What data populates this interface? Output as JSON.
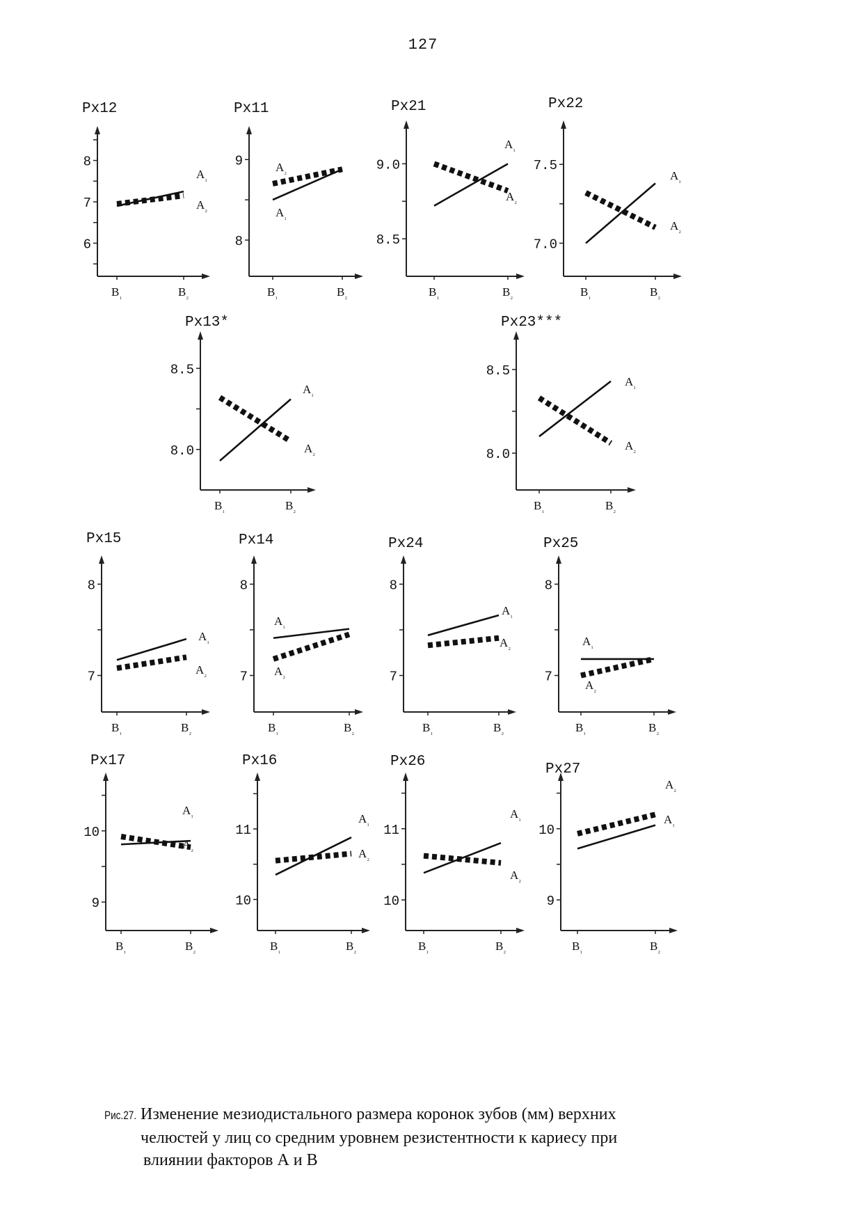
{
  "page_number": "127",
  "caption": {
    "label": "Рис.27.",
    "line1": "Изменение мезиодистального размера коронок зубов (мм) верхних",
    "line2": "челюстей у лиц со средним уровнем резистентности к кариесу при",
    "line3": "влиянии факторов А и В"
  },
  "chart_data": [
    {
      "type": "line",
      "title": "Рх12",
      "categories": [
        "B₁",
        "B₂"
      ],
      "ylim": [
        5.2,
        8.8
      ],
      "yticks": [
        {
          "value": 6,
          "label": "6"
        },
        {
          "value": 7,
          "label": "7"
        },
        {
          "value": 8,
          "label": "8"
        }
      ],
      "series": [
        {
          "name": "A₁",
          "values": [
            6.9,
            7.25
          ]
        },
        {
          "name": "A₂",
          "values": [
            6.95,
            7.15
          ]
        }
      ]
    },
    {
      "type": "line",
      "title": "Рх11",
      "categories": [
        "B₁",
        "B₂"
      ],
      "ylim": [
        7.55,
        9.4
      ],
      "yticks": [
        {
          "value": 8,
          "label": "8"
        },
        {
          "value": 9,
          "label": "9"
        }
      ],
      "series": [
        {
          "name": "A₁",
          "values": [
            8.5,
            8.88
          ]
        },
        {
          "name": "A₂",
          "values": [
            8.7,
            8.88
          ]
        }
      ]
    },
    {
      "type": "line",
      "title": "Рх21",
      "categories": [
        "B₁",
        "B₂"
      ],
      "ylim": [
        8.25,
        9.28
      ],
      "yticks": [
        {
          "value": 8.5,
          "label": "8.5"
        },
        {
          "value": 9.0,
          "label": "9.0"
        }
      ],
      "series": [
        {
          "name": "A₁",
          "values": [
            8.72,
            9.0
          ]
        },
        {
          "name": "A₂",
          "values": [
            9.0,
            8.82
          ]
        }
      ]
    },
    {
      "type": "line",
      "title": "Рх22",
      "categories": [
        "B₁",
        "B₂"
      ],
      "ylim": [
        6.79,
        7.77
      ],
      "yticks": [
        {
          "value": 7.0,
          "label": "7.0"
        },
        {
          "value": 7.5,
          "label": "7.5"
        }
      ],
      "series": [
        {
          "name": "A₁",
          "values": [
            7.0,
            7.38
          ]
        },
        {
          "name": "A₂",
          "values": [
            7.32,
            7.1
          ]
        }
      ]
    },
    {
      "type": "line",
      "title": "Рх13*",
      "categories": [
        "B₁",
        "B₂"
      ],
      "ylim": [
        7.75,
        8.72
      ],
      "yticks": [
        {
          "value": 8.0,
          "label": "8.0"
        },
        {
          "value": 8.5,
          "label": "8.5"
        }
      ],
      "series": [
        {
          "name": "A₁",
          "values": [
            7.93,
            8.31
          ]
        },
        {
          "name": "A₂",
          "values": [
            8.32,
            8.05
          ]
        }
      ]
    },
    {
      "type": "line",
      "title": "Рх23***",
      "categories": [
        "B₁",
        "B₂"
      ],
      "ylim": [
        7.78,
        8.72
      ],
      "yticks": [
        {
          "value": 8.0,
          "label": "8.0"
        },
        {
          "value": 8.5,
          "label": "8.5"
        }
      ],
      "series": [
        {
          "name": "A₁",
          "values": [
            8.1,
            8.43
          ]
        },
        {
          "name": "A₂",
          "values": [
            8.33,
            8.06
          ]
        }
      ]
    },
    {
      "type": "line",
      "title": "Рх15",
      "categories": [
        "B₁",
        "B₂"
      ],
      "ylim": [
        6.6,
        8.3
      ],
      "yticks": [
        {
          "value": 7,
          "label": "7"
        },
        {
          "value": 8,
          "label": "8"
        }
      ],
      "series": [
        {
          "name": "A₁",
          "values": [
            7.17,
            7.4
          ]
        },
        {
          "name": "A₂",
          "values": [
            7.08,
            7.2
          ]
        }
      ]
    },
    {
      "type": "line",
      "title": "Рх14",
      "categories": [
        "B₁",
        "B₂"
      ],
      "ylim": [
        6.6,
        8.3
      ],
      "yticks": [
        {
          "value": 7,
          "label": "7"
        },
        {
          "value": 8,
          "label": "8"
        }
      ],
      "series": [
        {
          "name": "A₁",
          "values": [
            7.41,
            7.51
          ]
        },
        {
          "name": "A₂",
          "values": [
            7.18,
            7.45
          ]
        }
      ]
    },
    {
      "type": "line",
      "title": "Рх24",
      "categories": [
        "B₁",
        "B₂"
      ],
      "ylim": [
        6.6,
        8.3
      ],
      "yticks": [
        {
          "value": 7,
          "label": "7"
        },
        {
          "value": 8,
          "label": "8"
        }
      ],
      "series": [
        {
          "name": "A₁",
          "values": [
            7.44,
            7.66
          ]
        },
        {
          "name": "A₂",
          "values": [
            7.33,
            7.41
          ]
        }
      ]
    },
    {
      "type": "line",
      "title": "Рх25",
      "categories": [
        "B₁",
        "B₂"
      ],
      "ylim": [
        6.6,
        8.3
      ],
      "yticks": [
        {
          "value": 7,
          "label": "7"
        },
        {
          "value": 8,
          "label": "8"
        }
      ],
      "series": [
        {
          "name": "A₁",
          "values": [
            7.18,
            7.18
          ]
        },
        {
          "name": "A₂",
          "values": [
            7.0,
            7.18
          ]
        }
      ]
    },
    {
      "type": "line",
      "title": "Рх17",
      "categories": [
        "B₁",
        "B₂"
      ],
      "ylim": [
        8.6,
        10.8
      ],
      "yticks": [
        {
          "value": 9,
          "label": "9"
        },
        {
          "value": 10,
          "label": "10"
        }
      ],
      "series": [
        {
          "name": "A₁",
          "values": [
            9.81,
            9.86
          ]
        },
        {
          "name": "A₂",
          "values": [
            9.92,
            9.77
          ]
        }
      ]
    },
    {
      "type": "line",
      "title": "Рх16",
      "categories": [
        "B₁",
        "B₂"
      ],
      "ylim": [
        9.56,
        11.78
      ],
      "yticks": [
        {
          "value": 10,
          "label": "10"
        },
        {
          "value": 11,
          "label": "11"
        }
      ],
      "series": [
        {
          "name": "A₁",
          "values": [
            10.35,
            10.88
          ]
        },
        {
          "name": "A₂",
          "values": [
            10.55,
            10.65
          ]
        }
      ]
    },
    {
      "type": "line",
      "title": "Рх26",
      "categories": [
        "B₁",
        "B₂"
      ],
      "ylim": [
        9.57,
        11.77
      ],
      "yticks": [
        {
          "value": 10,
          "label": "10"
        },
        {
          "value": 11,
          "label": "11"
        }
      ],
      "series": [
        {
          "name": "A₁",
          "values": [
            10.38,
            10.8
          ]
        },
        {
          "name": "A₂",
          "values": [
            10.62,
            10.52
          ]
        }
      ]
    },
    {
      "type": "line",
      "title": "Рх27",
      "categories": [
        "B₁",
        "B₂"
      ],
      "ylim": [
        8.57,
        10.77
      ],
      "yticks": [
        {
          "value": 9,
          "label": "9"
        },
        {
          "value": 10,
          "label": "10"
        }
      ],
      "series": [
        {
          "name": "A₁",
          "values": [
            9.72,
            10.05
          ]
        },
        {
          "name": "A₂",
          "values": [
            9.93,
            10.2
          ]
        }
      ]
    }
  ]
}
